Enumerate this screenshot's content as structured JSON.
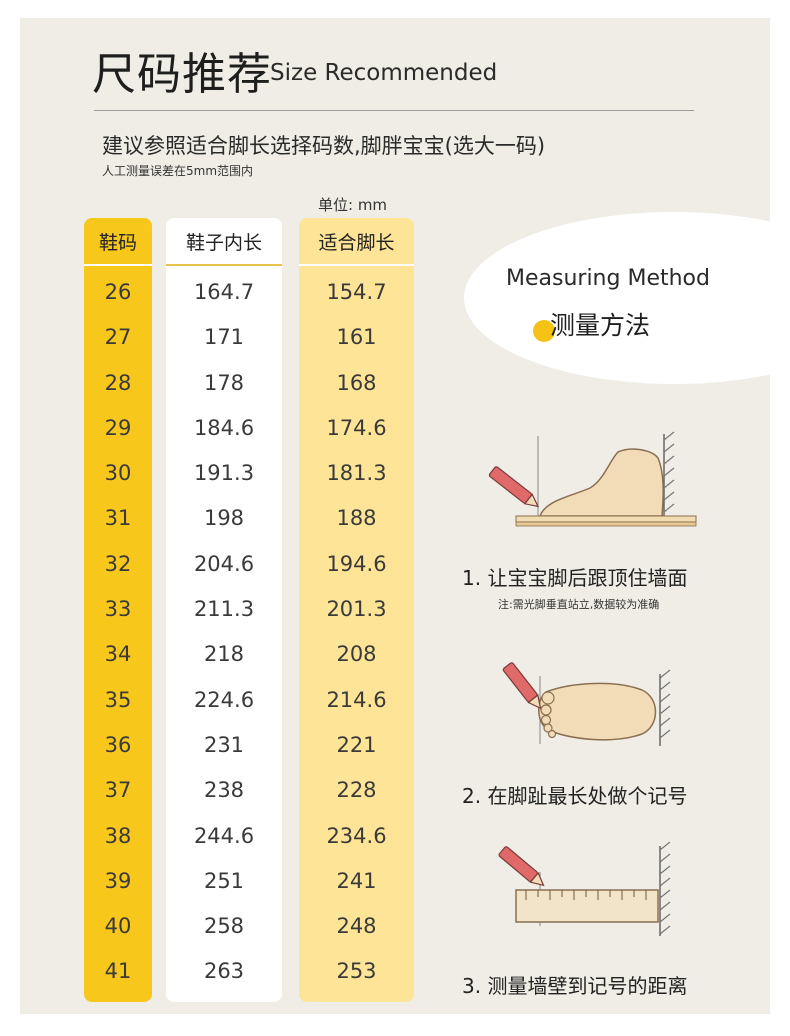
{
  "header": {
    "title_cn": "尺码推荐",
    "title_en": "Size Recommended",
    "advice": "建议参照适合脚长选择码数,脚胖宝宝(选大一码)",
    "measure_note": "人工测量误差在5mm范围内",
    "unit": "单位: mm"
  },
  "table": {
    "headers": [
      "鞋码",
      "鞋子内长",
      "适合脚长"
    ],
    "sizes": [
      "26",
      "27",
      "28",
      "29",
      "30",
      "31",
      "32",
      "33",
      "34",
      "35",
      "36",
      "37",
      "38",
      "39",
      "40",
      "41"
    ],
    "inner_length": [
      "164.7",
      "171",
      "178",
      "184.6",
      "191.3",
      "198",
      "204.6",
      "211.3",
      "218",
      "224.6",
      "231",
      "238",
      "244.6",
      "251",
      "258",
      "263"
    ],
    "foot_length": [
      "154.7",
      "161",
      "168",
      "174.6",
      "181.3",
      "188",
      "194.6",
      "201.3",
      "208",
      "214.6",
      "221",
      "228",
      "234.6",
      "241",
      "248",
      "253"
    ]
  },
  "method": {
    "title_en": "Measuring Method",
    "title_cn": "测量方法",
    "steps": [
      {
        "text": "1.  让宝宝脚后跟顶住墙面",
        "note": "注:需光脚垂直站立,数据较为准确"
      },
      {
        "text": "2.  在脚趾最长处做个记号",
        "note": ""
      },
      {
        "text": "3.  测量墙壁到记号的距离",
        "note": ""
      }
    ]
  },
  "colors": {
    "background": "#efede6",
    "size_column": "#f8c71c",
    "foot_column": "#fde497",
    "accent_dot": "#f6c215",
    "pencil": "#e06a6a",
    "foot": "#f2dcb8"
  }
}
